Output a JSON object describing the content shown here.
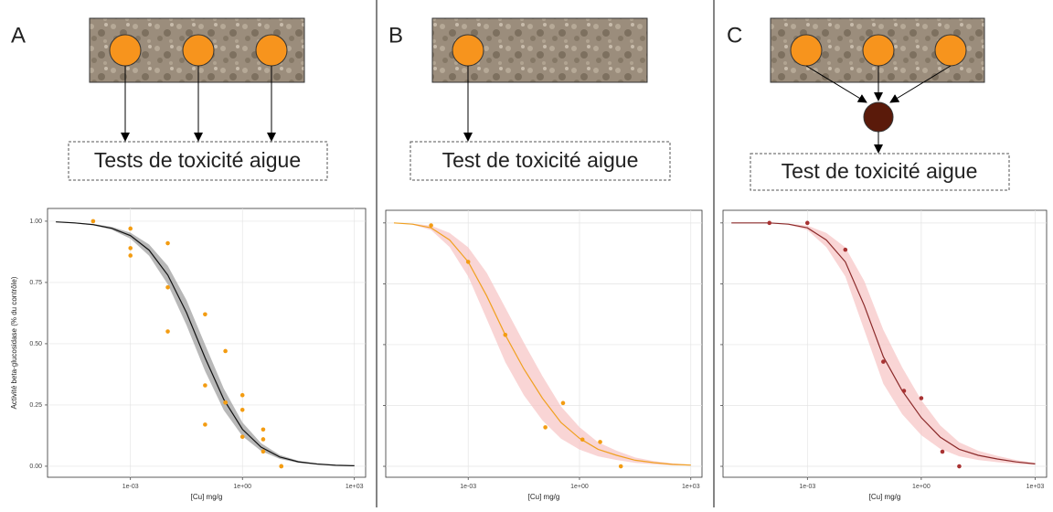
{
  "panels": [
    {
      "label": "A",
      "box": "Tests de toxicité aigue"
    },
    {
      "label": "B",
      "box": "Test de toxicité aigue"
    },
    {
      "label": "C",
      "box": "Test de toxicité aigue"
    }
  ],
  "chart_data": [
    {
      "type": "scatter",
      "xscale": "log",
      "xlabel": "[Cu] mg/g",
      "ylabel": "Activité beta-glucosidase (% du contrôle)",
      "xlim": [
        6e-06,
        2000
      ],
      "ylim": [
        -0.045,
        1.052
      ],
      "xticks": [
        {
          "value": 0.001,
          "label": "1e-03"
        },
        {
          "value": 1,
          "label": "1e+00"
        },
        {
          "value": 1000,
          "label": "1e+03"
        }
      ],
      "yticks": [
        {
          "value": 0,
          "label": "0.00"
        },
        {
          "value": 0.25,
          "label": "0.25"
        },
        {
          "value": 0.5,
          "label": "0.50"
        },
        {
          "value": 0.75,
          "label": "0.75"
        },
        {
          "value": 1,
          "label": "1.00"
        }
      ],
      "show_ytick_labels": true,
      "grid": true,
      "points": {
        "color": "#f39c12",
        "x": [
          0.0001,
          0.001,
          0.001,
          0.001,
          0.01,
          0.01,
          0.01,
          0.1,
          0.1,
          0.1,
          0.35,
          0.35,
          0.35,
          1,
          1,
          1,
          3.6,
          3.6,
          3.6,
          11,
          11
        ],
        "values": [
          1.0,
          0.97,
          0.89,
          0.86,
          0.91,
          0.73,
          0.55,
          0.62,
          0.33,
          0.17,
          0.47,
          0.26,
          0.26,
          0.29,
          0.23,
          0.12,
          0.15,
          0.11,
          0.06,
          0.0,
          0.0
        ]
      },
      "fit": {
        "color": "#111111",
        "band_color": "#9a9a9a",
        "x": [
          1e-05,
          3.16e-05,
          0.0001,
          0.000316,
          0.001,
          0.00316,
          0.01,
          0.0316,
          0.1,
          0.316,
          1,
          3.16,
          10,
          31.6,
          100,
          316,
          1000
        ],
        "values": [
          0.997,
          0.993,
          0.986,
          0.971,
          0.941,
          0.882,
          0.78,
          0.627,
          0.442,
          0.273,
          0.151,
          0.078,
          0.038,
          0.018,
          0.009,
          0.004,
          0.002
        ],
        "lower": [
          0.996,
          0.991,
          0.983,
          0.965,
          0.929,
          0.859,
          0.742,
          0.576,
          0.388,
          0.229,
          0.123,
          0.062,
          0.03,
          0.014,
          0.007,
          0.003,
          0.002
        ],
        "upper": [
          0.998,
          0.995,
          0.989,
          0.977,
          0.953,
          0.905,
          0.818,
          0.678,
          0.496,
          0.317,
          0.179,
          0.094,
          0.046,
          0.022,
          0.011,
          0.005,
          0.002
        ]
      }
    },
    {
      "type": "scatter",
      "xscale": "log",
      "xlabel": "[Cu] mg/g",
      "xlim": [
        6e-06,
        2000
      ],
      "ylim": [
        -0.045,
        1.052
      ],
      "xticks": [
        {
          "value": 0.001,
          "label": "1e-03"
        },
        {
          "value": 1,
          "label": "1e+00"
        },
        {
          "value": 1000,
          "label": "1e+03"
        }
      ],
      "yticks": [
        0,
        0.25,
        0.5,
        0.75,
        1
      ],
      "show_ytick_labels": false,
      "grid": true,
      "points": {
        "color": "#f39c12",
        "x": [
          0.0001,
          0.001,
          0.01,
          0.12,
          0.36,
          1.2,
          3.6,
          13
        ],
        "values": [
          0.99,
          0.84,
          0.54,
          0.16,
          0.26,
          0.11,
          0.1,
          0.0
        ]
      },
      "fit": {
        "color": "#f0a020",
        "band_color": "#f7c3c3",
        "x": [
          1e-05,
          3.16e-05,
          0.0001,
          0.000316,
          0.001,
          0.00316,
          0.01,
          0.0316,
          0.1,
          0.316,
          1,
          3.16,
          10,
          31.6,
          100,
          316,
          1000
        ],
        "values": [
          1.0,
          0.995,
          0.98,
          0.93,
          0.84,
          0.7,
          0.54,
          0.4,
          0.28,
          0.18,
          0.115,
          0.07,
          0.045,
          0.025,
          0.015,
          0.008,
          0.005
        ],
        "lower": [
          1.0,
          0.993,
          0.971,
          0.901,
          0.78,
          0.605,
          0.428,
          0.292,
          0.189,
          0.114,
          0.069,
          0.041,
          0.026,
          0.014,
          0.008,
          0.004,
          0.003
        ],
        "upper": [
          1.0,
          0.997,
          0.989,
          0.959,
          0.9,
          0.795,
          0.652,
          0.508,
          0.371,
          0.246,
          0.161,
          0.099,
          0.064,
          0.036,
          0.022,
          0.012,
          0.007
        ]
      }
    },
    {
      "type": "scatter",
      "xscale": "log",
      "xlabel": "[Cu] mg/g",
      "xlim": [
        6e-06,
        2000
      ],
      "ylim": [
        -0.045,
        1.052
      ],
      "xticks": [
        {
          "value": 0.001,
          "label": "1e-03"
        },
        {
          "value": 1,
          "label": "1e+00"
        },
        {
          "value": 1000,
          "label": "1e+03"
        }
      ],
      "yticks": [
        0,
        0.25,
        0.5,
        0.75,
        1
      ],
      "show_ytick_labels": false,
      "grid": true,
      "points": {
        "color": "#a83232",
        "x": [
          0.0001,
          0.001,
          0.01,
          0.1,
          0.35,
          1,
          3.6,
          10
        ],
        "values": [
          1.0,
          1.0,
          0.89,
          0.43,
          0.31,
          0.28,
          0.06,
          0.0
        ]
      },
      "fit": {
        "color": "#8b2a2a",
        "band_color": "#f7c3c3",
        "x": [
          1e-05,
          0.0001,
          0.000316,
          0.001,
          0.00316,
          0.01,
          0.0316,
          0.1,
          0.316,
          1,
          3.16,
          10,
          31.6,
          100,
          316,
          1000
        ],
        "values": [
          1.0,
          1.0,
          0.995,
          0.98,
          0.93,
          0.84,
          0.66,
          0.45,
          0.31,
          0.2,
          0.12,
          0.07,
          0.045,
          0.03,
          0.018,
          0.01
        ],
        "lower": [
          1.0,
          1.0,
          0.993,
          0.971,
          0.901,
          0.78,
          0.559,
          0.339,
          0.214,
          0.128,
          0.072,
          0.041,
          0.026,
          0.017,
          0.01,
          0.006
        ],
        "upper": [
          1.0,
          1.0,
          0.997,
          0.989,
          0.959,
          0.9,
          0.761,
          0.561,
          0.406,
          0.272,
          0.168,
          0.099,
          0.064,
          0.043,
          0.026,
          0.014
        ]
      }
    }
  ]
}
